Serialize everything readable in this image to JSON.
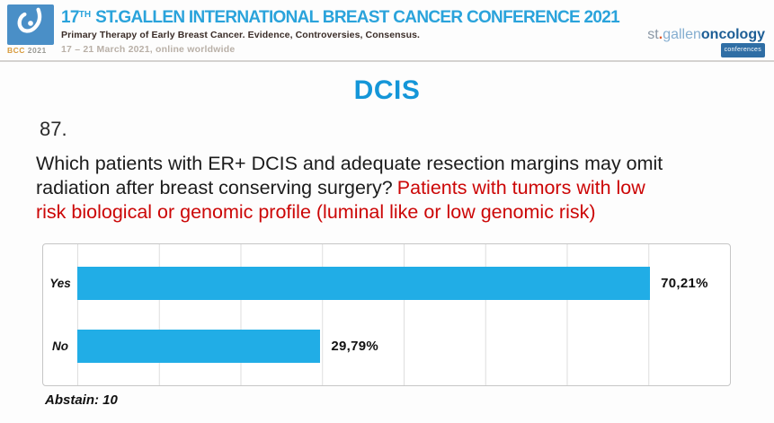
{
  "header": {
    "logo": {
      "bcc": "BCC",
      "year": "2021"
    },
    "title_num": "17",
    "title_sup": "TH",
    "title_rest": "ST.GALLEN INTERNATIONAL BREAST CANCER CONFERENCE 2021",
    "subtitle": "Primary Therapy of Early Breast Cancer. Evidence, Controversies, Consensus.",
    "dates": "17 – 21 March 2021, online worldwide",
    "brand": {
      "st": "st",
      "dot": ".",
      "gallen": "gallen",
      "oncology": "oncology",
      "tagline": "conferences"
    }
  },
  "slide": {
    "title": "DCIS"
  },
  "question": {
    "number": "87.",
    "line1_black": "Which patients with ER+ DCIS and adequate resection margins may omit",
    "line2_black": "radiation after breast conserving surgery?",
    "line2_red": "Patients with tumors with low",
    "line3_red": "risk biological or genomic profile (luminal like or low genomic risk)"
  },
  "chart_data": {
    "type": "bar",
    "orientation": "horizontal",
    "title": "",
    "categories": [
      "Yes",
      "No"
    ],
    "values": [
      70.21,
      29.79
    ],
    "value_labels": [
      "70,21%",
      "29,79%"
    ],
    "xlim": [
      0,
      80
    ],
    "gridline_interval_pct": 10,
    "grid": true,
    "legend": false,
    "bar_color": "#21ade6",
    "abstain_label": "Abstain: 10"
  },
  "colors": {
    "title_blue": "#1496d8",
    "header_blue": "#2aa3db",
    "question_red": "#cc0606",
    "bar_cyan": "#21ade6",
    "logo_blue": "#4a8fc7",
    "brand_dark_blue": "#1d5e96"
  }
}
